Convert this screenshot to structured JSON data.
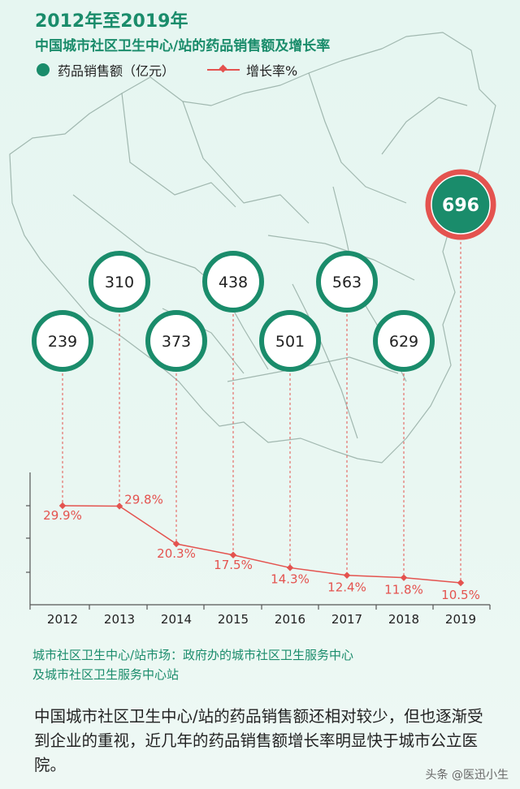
{
  "header": {
    "title": "2012年至2019年",
    "subtitle": "中国城市社区卫生中心/站的药品销售额及增长率"
  },
  "legend": {
    "sales_label": "药品销售额（亿元）",
    "growth_label": "增长率%"
  },
  "colors": {
    "accent": "#1a8c6b",
    "growth": "#e4534f",
    "highlight_ring": "#e4534f"
  },
  "chart_data": {
    "type": "line",
    "categories": [
      "2012",
      "2013",
      "2014",
      "2015",
      "2016",
      "2017",
      "2018",
      "2019"
    ],
    "series": [
      {
        "name": "药品销售额（亿元）",
        "values": [
          239,
          310,
          373,
          438,
          501,
          563,
          629,
          696
        ],
        "labels": [
          "239",
          "310",
          "373",
          "438",
          "501",
          "563",
          "629",
          "696"
        ]
      },
      {
        "name": "增长率%",
        "values": [
          29.9,
          29.8,
          20.3,
          17.5,
          14.3,
          12.4,
          11.8,
          10.5
        ],
        "labels": [
          "29.9%",
          "29.8%",
          "20.3%",
          "17.5%",
          "14.3%",
          "12.4%",
          "11.8%",
          "10.5%"
        ]
      }
    ]
  },
  "note": {
    "line1": "城市社区卫生中心/站市场：政府办的城市社区卫生服务中心",
    "line2": "及城市社区卫生服务中心站"
  },
  "description": "中国城市社区卫生中心/站的药品销售额还相对较少，但也逐渐受到企业的重视，近几年的药品销售额增长率明显快于城市公立医院。",
  "footer": {
    "watermark": "头条 @医迅小生"
  }
}
